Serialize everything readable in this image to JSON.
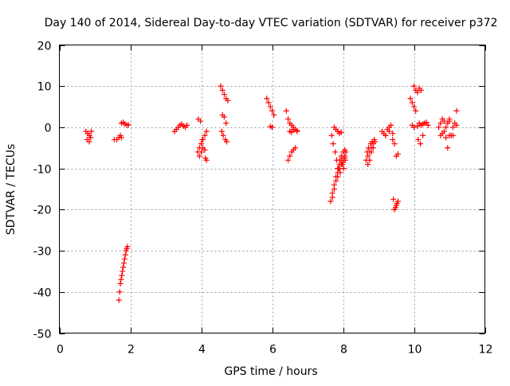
{
  "chart_data": {
    "type": "scatter",
    "title": "Day 140 of 2014, Sidereal Day-to-day VTEC variation (SDTVAR) for receiver p372",
    "xlabel": "GPS time / hours",
    "ylabel": "SDTVAR / TECUs",
    "xlim": [
      0,
      12
    ],
    "ylim": [
      -50,
      20
    ],
    "xticks": [
      0,
      2,
      4,
      6,
      8,
      10,
      12
    ],
    "yticks": [
      -50,
      -40,
      -30,
      -20,
      -10,
      0,
      10,
      20
    ],
    "grid": true,
    "marker": "+",
    "marker_color": "#ff0000",
    "series": [
      {
        "name": "SDTVAR",
        "x": [
          0.75,
          0.8,
          0.85,
          0.9,
          0.78,
          0.84,
          0.88,
          1.55,
          1.62,
          1.68,
          1.72,
          1.75,
          1.75,
          1.8,
          1.85,
          1.9,
          1.95,
          1.68,
          1.7,
          1.72,
          1.74,
          1.76,
          1.78,
          1.8,
          1.82,
          1.84,
          1.86,
          1.88,
          1.9,
          1.92,
          3.25,
          3.3,
          3.35,
          3.4,
          3.45,
          3.5,
          3.55,
          3.6,
          3.9,
          3.95,
          4.0,
          4.05,
          4.1,
          4.15,
          3.95,
          4.0,
          4.05,
          4.1,
          3.92,
          3.98,
          4.03,
          4.12,
          4.15,
          4.55,
          4.6,
          4.65,
          4.7,
          4.75,
          4.6,
          4.65,
          4.7,
          4.58,
          4.62,
          4.68,
          4.72,
          5.85,
          5.9,
          5.95,
          6.0,
          6.05,
          5.95,
          6.0,
          6.4,
          6.45,
          6.5,
          6.55,
          6.6,
          6.65,
          6.7,
          6.45,
          6.5,
          6.55,
          6.6,
          6.65,
          6.5,
          6.55,
          6.6,
          6.7,
          7.65,
          7.7,
          7.75,
          7.8,
          7.85,
          7.9,
          7.95,
          8.0,
          8.05,
          7.7,
          7.75,
          7.8,
          7.85,
          7.9,
          7.95,
          8.0,
          8.05,
          7.75,
          7.8,
          7.85,
          7.9,
          7.95,
          7.68,
          7.72,
          7.78,
          7.82,
          7.88,
          7.92,
          7.98,
          8.02,
          8.06,
          7.85,
          7.9,
          7.95,
          8.0,
          8.05,
          8.08,
          8.65,
          8.7,
          8.75,
          8.8,
          8.85,
          8.9,
          8.7,
          8.75,
          8.8,
          8.85,
          8.68,
          8.72,
          8.78,
          8.82,
          8.88,
          9.1,
          9.15,
          9.2,
          9.25,
          9.3,
          9.35,
          9.4,
          9.45,
          9.2,
          9.3,
          9.4,
          9.5,
          9.55,
          9.45,
          9.5,
          9.55,
          9.42,
          9.48,
          9.52,
          9.9,
          9.95,
          10.0,
          10.05,
          10.0,
          10.05,
          10.1,
          10.15,
          10.2,
          9.95,
          10.0,
          10.1,
          10.15,
          10.2,
          10.25,
          10.3,
          10.35,
          10.4,
          10.12,
          10.18,
          10.25,
          10.7,
          10.75,
          10.8,
          10.85,
          10.9,
          10.95,
          11.0,
          10.75,
          10.85,
          10.95,
          11.05,
          11.1,
          11.15,
          11.2,
          11.0,
          11.1,
          11.2,
          10.8,
          10.9,
          11.0
        ],
        "y": [
          -1,
          -1.5,
          -2,
          -1,
          -3,
          -3.5,
          -2.5,
          -3,
          -3,
          -2.5,
          -2,
          -2.5,
          1,
          1.2,
          0.8,
          0.5,
          0.6,
          -42,
          -40,
          -38,
          -37,
          -36,
          -35,
          -34,
          -33,
          -32,
          -31,
          -30,
          -29.5,
          -29,
          -1,
          -0.5,
          0,
          0.5,
          0.8,
          0.3,
          0,
          0.5,
          -6,
          -5,
          -4,
          -3,
          -2,
          -1,
          -7,
          -6,
          -5,
          -5.5,
          2,
          1.5,
          -3,
          -7.5,
          -8,
          10,
          9,
          8,
          7,
          6.5,
          3,
          2.5,
          1,
          -1,
          -2,
          -3,
          -3.5,
          7,
          6,
          5,
          4,
          3,
          0.2,
          0,
          4,
          2,
          1,
          0.5,
          0,
          -0.5,
          -1,
          -8,
          -7,
          -6,
          -5.5,
          -5,
          -1,
          -1.2,
          -0.5,
          -0.8,
          -18,
          -16,
          -14,
          -12,
          -10,
          -8,
          -7,
          -6,
          -5.5,
          -17,
          -15,
          -13,
          -11,
          -9,
          -8,
          -7.5,
          -7,
          0,
          -0.5,
          -1,
          -1.5,
          -1.2,
          -2,
          -4,
          -6,
          -8,
          -10,
          -11,
          -9,
          -10,
          -8,
          -12,
          -10,
          -9,
          -8.5,
          -7.5,
          -6,
          -8,
          -7,
          -6,
          -5,
          -4,
          -3.5,
          -9,
          -8,
          -6,
          -5,
          -6,
          -5,
          -4,
          -3.5,
          -3,
          -1,
          -1.5,
          -2,
          -0.5,
          0,
          0.5,
          -3,
          -4,
          -2,
          -1,
          -1.5,
          -7,
          -6.5,
          -20,
          -19,
          -18,
          -17.5,
          -19.5,
          -18.5,
          7,
          6,
          5,
          4,
          10,
          9,
          8.5,
          9.5,
          9,
          0.5,
          0,
          0.3,
          1,
          0.5,
          0.8,
          1,
          1.2,
          0.5,
          -3,
          -4,
          -2,
          0,
          1,
          2,
          1.5,
          0,
          1,
          2,
          -2,
          -1,
          -5,
          -2,
          0,
          1,
          0.5,
          1.5,
          -2,
          4,
          -1.5,
          -2.5,
          -2
        ]
      }
    ]
  }
}
